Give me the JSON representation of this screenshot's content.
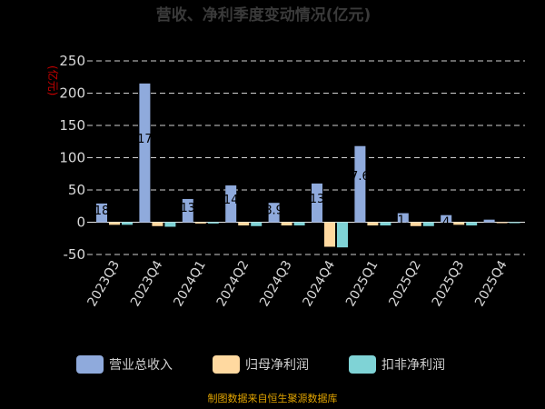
{
  "chart_data": {
    "type": "bar",
    "title": "营收、净利季度变动情况(亿元)",
    "unit_label": "(亿元)",
    "ylim": [
      -50,
      250
    ],
    "yticks": [
      -50,
      0,
      50,
      100,
      150,
      200,
      250
    ],
    "grid": true,
    "legend_position": "bottom",
    "categories": [
      "2023Q3",
      "2023Q4",
      "2024Q1",
      "2024Q2",
      "2024Q3",
      "2024Q4",
      "2025Q1",
      "2025Q2",
      "2025Q3",
      "2025Q4"
    ],
    "series": [
      {
        "name": "营业总收入",
        "color": "#8faadc",
        "values": [
          29,
          215,
          36,
          57,
          30,
          60,
          118,
          14,
          11,
          4
        ]
      },
      {
        "name": "归母净利润",
        "color": "#ffd9a0",
        "values": [
          -4,
          -6,
          -2,
          -5,
          -5,
          -38,
          -5,
          -6,
          -4,
          -1
        ]
      },
      {
        "name": "扣非净利润",
        "color": "#7fd3d6",
        "values": [
          -4,
          -7,
          -2,
          -6,
          -5,
          -39,
          -5,
          -6,
          -5,
          -1
        ]
      }
    ],
    "data_labels": [
      "18",
      "17",
      "13",
      "14",
      "8.9",
      "13",
      "7.6",
      "1.",
      "4",
      ""
    ]
  },
  "footer": {
    "source": "制图数据来自恒生聚源数据库"
  }
}
